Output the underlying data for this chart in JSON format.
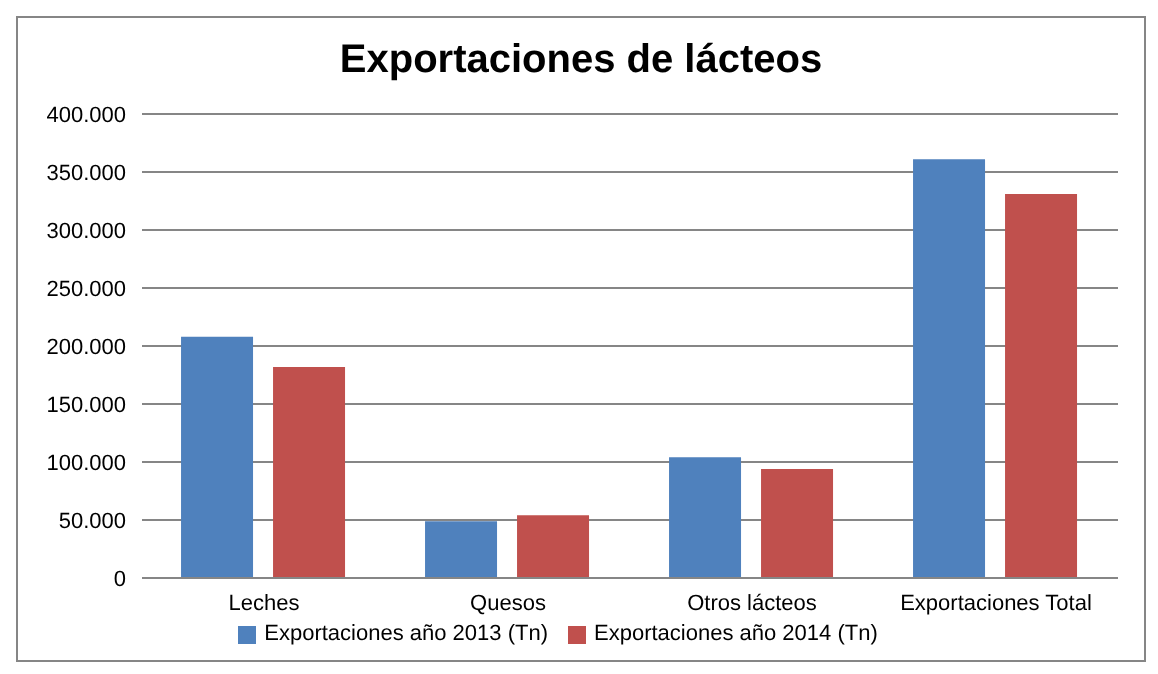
{
  "chart_data": {
    "type": "bar",
    "title": "Exportaciones de lácteos",
    "categories": [
      "Leches",
      "Quesos",
      "Otros lácteos",
      "Exportaciones Total"
    ],
    "series": [
      {
        "name": "Exportaciones año 2013 (Tn)",
        "color": "#4f81bd",
        "values": [
          208000,
          49000,
          104000,
          361000
        ]
      },
      {
        "name": "Exportaciones año 2014 (Tn)",
        "color": "#c0504d",
        "values": [
          182000,
          54000,
          94000,
          331000
        ]
      }
    ],
    "ylim": [
      0,
      400000
    ],
    "yticks": [
      0,
      {
        "value": 50000,
        "label": "50.000"
      },
      {
        "value": 100000,
        "label": "100.000"
      },
      {
        "value": 150000,
        "label": "150.000"
      },
      {
        "value": 200000,
        "label": "200.000"
      },
      {
        "value": 250000,
        "label": "250.000"
      },
      {
        "value": 300000,
        "label": "300.000"
      },
      {
        "value": 350000,
        "label": "350.000"
      },
      {
        "value": 400000,
        "label": "400.000"
      }
    ],
    "grid": "y",
    "legend": "bottom"
  }
}
